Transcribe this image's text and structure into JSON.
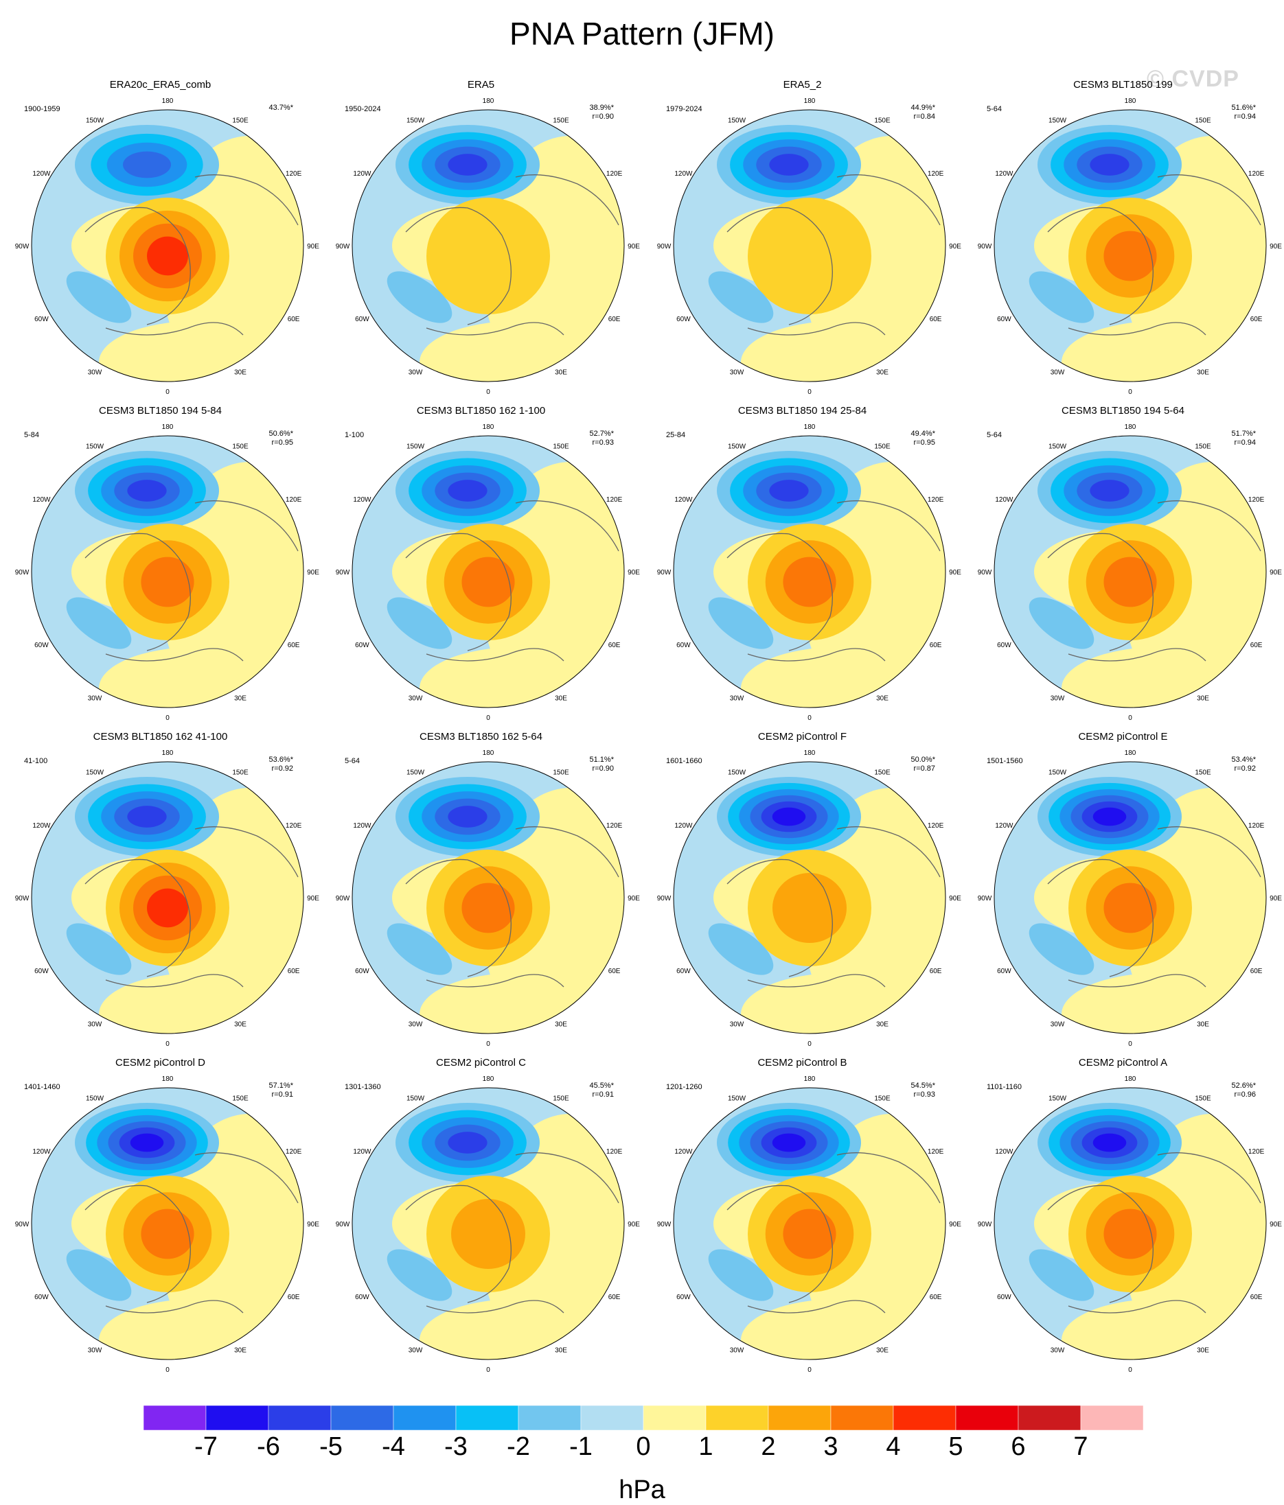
{
  "title": "PNA Pattern (JFM)",
  "watermark": "© CVDP",
  "lon_labels": [
    "180",
    "150E",
    "120E",
    "90E",
    "60E",
    "30E",
    "0",
    "30W",
    "60W",
    "90W",
    "120W",
    "150W"
  ],
  "panels": [
    {
      "title": "ERA20c_ERA5_comb",
      "years": "1900-1959",
      "pct": "43.7%*",
      "r": "",
      "low": [
        -4.6
      ],
      "high": [
        4.2
      ]
    },
    {
      "title": "ERA5",
      "years": "1950-2024",
      "pct": "38.9%*",
      "r": "r=0.90",
      "low": [
        -5.1
      ],
      "high": [
        1.8
      ]
    },
    {
      "title": "ERA5_2",
      "years": "1979-2024",
      "pct": "44.9%*",
      "r": "r=0.84",
      "low": [
        -5.8
      ],
      "high": [
        1.6
      ]
    },
    {
      "title": "CESM3 BLT1850 199",
      "years": "5-64",
      "pct": "51.6%*",
      "r": "r=0.94",
      "low": [
        -5.9
      ],
      "high": [
        3.9
      ]
    },
    {
      "title": "CESM3 BLT1850 194 5-84",
      "years": "5-84",
      "pct": "50.6%*",
      "r": "r=0.95",
      "low": [
        -5.9
      ],
      "high": [
        3.1
      ]
    },
    {
      "title": "CESM3 BLT1850 162 1-100",
      "years": "1-100",
      "pct": "52.7%*",
      "r": "r=0.93",
      "low": [
        -5.9
      ],
      "high": [
        3.6
      ]
    },
    {
      "title": "CESM3 BLT1850 194 25-84",
      "years": "25-84",
      "pct": "49.4%*",
      "r": "r=0.95",
      "low": [
        -5.9
      ],
      "high": [
        3.5
      ]
    },
    {
      "title": "CESM3 BLT1850 194 5-64",
      "years": "5-64",
      "pct": "51.7%*",
      "r": "r=0.94",
      "low": [
        -5.8
      ],
      "high": [
        3.1
      ]
    },
    {
      "title": "CESM3 BLT1850 162 41-100",
      "years": "41-100",
      "pct": "53.6%*",
      "r": "r=0.92",
      "low": [
        -5.6
      ],
      "high": [
        4.5
      ]
    },
    {
      "title": "CESM3 BLT1850 162 5-64",
      "years": "5-64",
      "pct": "51.1%*",
      "r": "r=0.90",
      "low": [
        -5.6
      ],
      "high": [
        3.6
      ]
    },
    {
      "title": "CESM2 piControl F",
      "years": "1601-1660",
      "pct": "50.0%*",
      "r": "r=0.87",
      "low": [
        -6.5
      ],
      "high": [
        2.6
      ]
    },
    {
      "title": "CESM2 piControl E",
      "years": "1501-1560",
      "pct": "53.4%*",
      "r": "r=0.92",
      "low": [
        -6.9
      ],
      "high": [
        3.4
      ]
    },
    {
      "title": "CESM2 piControl D",
      "years": "1401-1460",
      "pct": "57.1%*",
      "r": "r=0.91",
      "low": [
        -6.9
      ],
      "high": [
        3.5
      ]
    },
    {
      "title": "CESM2 piControl C",
      "years": "1301-1360",
      "pct": "45.5%*",
      "r": "r=0.91",
      "low": [
        -5.9
      ],
      "high": [
        2.8
      ]
    },
    {
      "title": "CESM2 piControl B",
      "years": "1201-1260",
      "pct": "54.5%*",
      "r": "r=0.93",
      "low": [
        -6.9
      ],
      "high": [
        3.4
      ]
    },
    {
      "title": "CESM2 piControl A",
      "years": "1101-1160",
      "pct": "52.6%*",
      "r": "r=0.96",
      "low": [
        -6.6
      ],
      "high": [
        3.5
      ]
    }
  ],
  "colorbar": {
    "unit": "hPa",
    "ticks": [
      "-7",
      "-6",
      "-5",
      "-4",
      "-3",
      "-2",
      "-1",
      "0",
      "1",
      "2",
      "3",
      "4",
      "5",
      "6",
      "7"
    ],
    "colors": [
      "#8126f2",
      "#1f0ef0",
      "#2b3ee8",
      "#2d6ae6",
      "#1f92f0",
      "#08c0f6",
      "#72c6ef",
      "#b2def2",
      "#fff69a",
      "#fdd22a",
      "#fca50a",
      "#fb7707",
      "#fd2d03",
      "#e9000b",
      "#cc1a1e",
      "#fdb7b7"
    ]
  },
  "color_scale": {
    "neg": [
      "#b2def2",
      "#72c6ef",
      "#08c0f6",
      "#1f92f0",
      "#2d6ae6",
      "#2b3ee8",
      "#1f0ef0",
      "#8126f2"
    ],
    "pos": [
      "#fff69a",
      "#fdd22a",
      "#fca50a",
      "#fb7707",
      "#fd2d03",
      "#e9000b",
      "#cc1a1e",
      "#fdb7b7"
    ]
  }
}
